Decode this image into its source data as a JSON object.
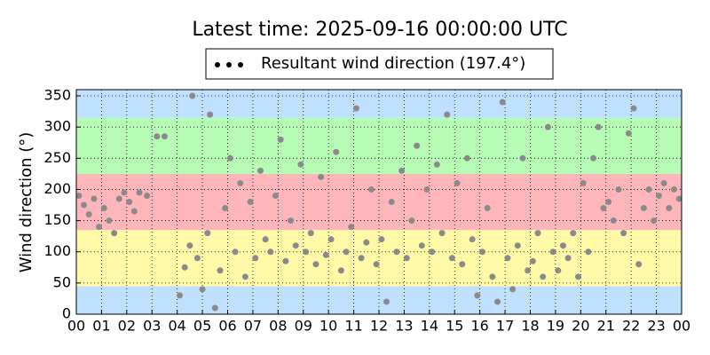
{
  "chart_data": {
    "type": "scatter",
    "title": "Latest time: 2025-09-16 00:00:00 UTC",
    "y_label": "Wind direction (°)",
    "xlim": [
      0,
      24
    ],
    "ylim": [
      0,
      360
    ],
    "xticks": [
      {
        "value": 0,
        "label": "00"
      },
      {
        "value": 1,
        "label": "01"
      },
      {
        "value": 2,
        "label": "02"
      },
      {
        "value": 3,
        "label": "03"
      },
      {
        "value": 4,
        "label": "04"
      },
      {
        "value": 5,
        "label": "05"
      },
      {
        "value": 6,
        "label": "06"
      },
      {
        "value": 7,
        "label": "07"
      },
      {
        "value": 8,
        "label": "08"
      },
      {
        "value": 9,
        "label": "09"
      },
      {
        "value": 10,
        "label": "10"
      },
      {
        "value": 11,
        "label": "11"
      },
      {
        "value": 12,
        "label": "12"
      },
      {
        "value": 13,
        "label": "13"
      },
      {
        "value": 14,
        "label": "14"
      },
      {
        "value": 15,
        "label": "15"
      },
      {
        "value": 16,
        "label": "16"
      },
      {
        "value": 17,
        "label": "17"
      },
      {
        "value": 18,
        "label": "18"
      },
      {
        "value": 19,
        "label": "19"
      },
      {
        "value": 20,
        "label": "20"
      },
      {
        "value": 21,
        "label": "21"
      },
      {
        "value": 22,
        "label": "22"
      },
      {
        "value": 23,
        "label": "23"
      },
      {
        "value": 24,
        "label": "00"
      }
    ],
    "yticks": [
      0,
      50,
      100,
      150,
      200,
      250,
      300,
      350
    ],
    "grid": true,
    "bands": [
      {
        "from": 0,
        "to": 45,
        "color": "#bfe0ff"
      },
      {
        "from": 45,
        "to": 135,
        "color": "#fff9a8"
      },
      {
        "from": 135,
        "to": 225,
        "color": "#ffb6bb"
      },
      {
        "from": 225,
        "to": 315,
        "color": "#b6fcb4"
      },
      {
        "from": 315,
        "to": 360,
        "color": "#bfe0ff"
      }
    ],
    "series": [
      {
        "name": "Resultant wind direction (197.4°)",
        "color": "#8a8a8a",
        "x": [
          0.1,
          0.3,
          0.5,
          0.7,
          0.9,
          1.1,
          1.3,
          1.5,
          1.7,
          1.9,
          2.1,
          2.3,
          2.5,
          2.8,
          3.2,
          3.5,
          4.1,
          4.3,
          4.5,
          4.6,
          4.8,
          5.0,
          5.2,
          5.3,
          5.5,
          5.7,
          5.9,
          6.1,
          6.3,
          6.5,
          6.7,
          6.9,
          7.1,
          7.3,
          7.5,
          7.7,
          7.9,
          8.1,
          8.3,
          8.5,
          8.7,
          8.9,
          9.1,
          9.3,
          9.5,
          9.7,
          9.9,
          10.1,
          10.3,
          10.5,
          10.7,
          10.9,
          11.1,
          11.3,
          11.5,
          11.7,
          11.9,
          12.1,
          12.3,
          12.5,
          12.7,
          12.9,
          13.1,
          13.3,
          13.5,
          13.7,
          13.9,
          14.1,
          14.3,
          14.5,
          14.7,
          14.9,
          15.1,
          15.3,
          15.5,
          15.7,
          15.9,
          16.1,
          16.3,
          16.5,
          16.7,
          16.9,
          17.1,
          17.3,
          17.5,
          17.7,
          17.9,
          18.1,
          18.3,
          18.5,
          18.7,
          18.9,
          19.1,
          19.3,
          19.5,
          19.7,
          19.9,
          20.1,
          20.3,
          20.5,
          20.7,
          20.9,
          21.1,
          21.3,
          21.5,
          21.7,
          21.9,
          22.1,
          22.3,
          22.5,
          22.7,
          22.9,
          23.1,
          23.3,
          23.5,
          23.7,
          23.9
        ],
        "values": [
          190,
          175,
          160,
          185,
          140,
          170,
          150,
          130,
          185,
          195,
          180,
          165,
          195,
          190,
          285,
          285,
          30,
          75,
          110,
          350,
          90,
          40,
          130,
          320,
          10,
          70,
          170,
          250,
          100,
          210,
          60,
          180,
          90,
          230,
          120,
          100,
          190,
          280,
          85,
          150,
          110,
          240,
          100,
          130,
          80,
          220,
          95,
          120,
          260,
          70,
          100,
          140,
          330,
          90,
          115,
          200,
          80,
          120,
          20,
          180,
          100,
          230,
          90,
          150,
          270,
          110,
          200,
          100,
          240,
          130,
          320,
          90,
          210,
          80,
          250,
          120,
          30,
          100,
          170,
          60,
          20,
          340,
          90,
          40,
          110,
          250,
          70,
          85,
          130,
          60,
          300,
          100,
          70,
          110,
          90,
          130,
          60,
          210,
          100,
          250,
          300,
          170,
          180,
          150,
          200,
          130,
          290,
          330,
          80,
          170,
          200,
          150,
          190,
          210,
          170,
          200,
          185
        ]
      }
    ]
  }
}
